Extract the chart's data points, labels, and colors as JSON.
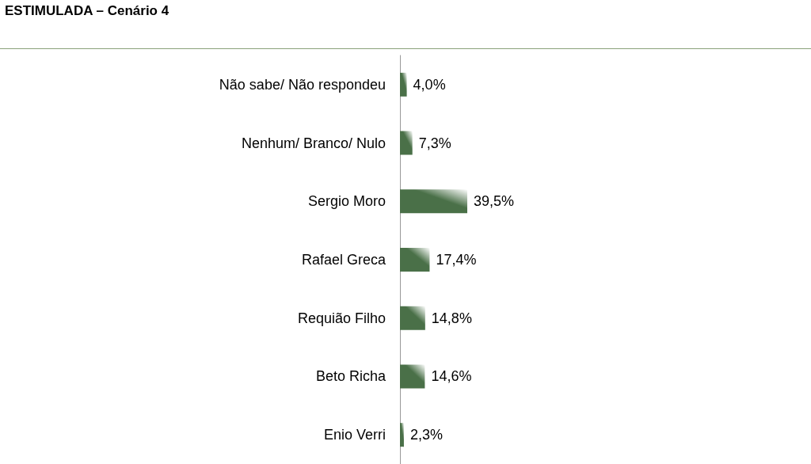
{
  "chart_data": {
    "type": "bar",
    "orientation": "horizontal",
    "title": "ESTIMULADA – Cenário 4",
    "categories": [
      "Não sabe/ Não respondeu",
      "Nenhum/ Branco/ Nulo",
      "Sergio Moro",
      "Rafael Greca",
      "Requião Filho",
      "Beto Richa",
      "Enio Verri"
    ],
    "values": [
      4.0,
      7.3,
      39.5,
      17.4,
      14.8,
      14.6,
      2.3
    ],
    "value_labels": [
      "4,0%",
      "7,3%",
      "39,5%",
      "17,4%",
      "14,8%",
      "14,6%",
      "2,3%"
    ],
    "color": "#4a7048"
  }
}
